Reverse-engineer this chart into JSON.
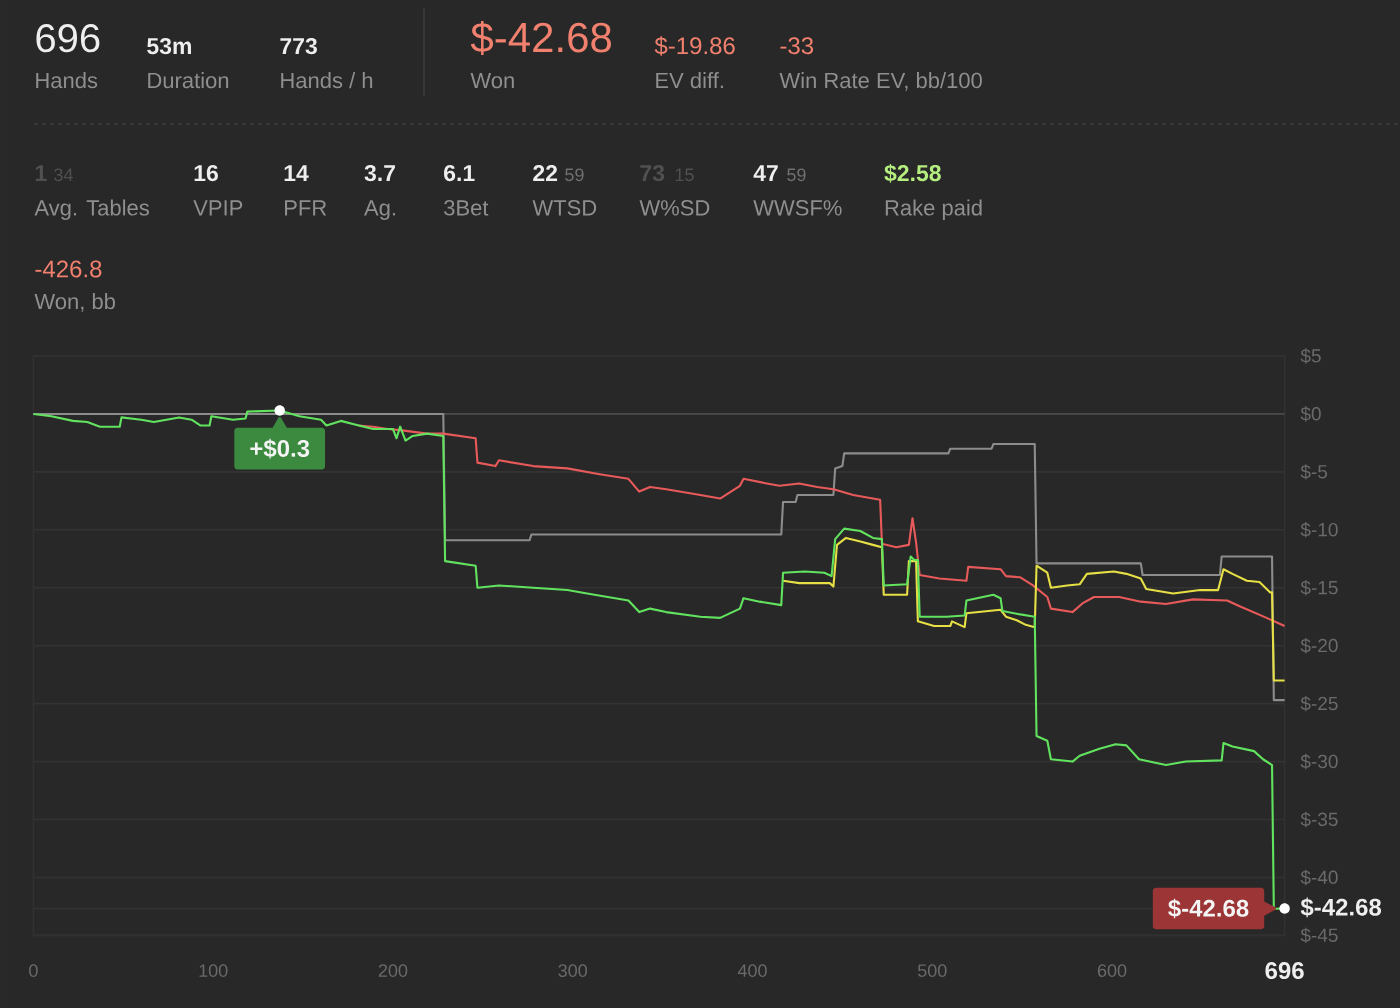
{
  "chart_data": [
    {
      "type": "other",
      "annotations": [
        "696",
        "Hands",
        "53m",
        "Duration",
        "773",
        "Hands / h",
        "$-42.68",
        "Won",
        "$-19.86",
        "EV diff.",
        "-33",
        "Win Rate EV, bb/100",
        "1",
        "34",
        "Avg. Tables",
        "16",
        "VPIP",
        "14",
        "PFR",
        "3.7",
        "Ag.",
        "6.1",
        "3Bet",
        "22",
        "59",
        "WTSD",
        "73",
        "15",
        "W%SD",
        "47",
        "59",
        "WWSF%",
        "$2.58",
        "Rake paid",
        "-426.8",
        "Won, bb"
      ]
    },
    {
      "type": "line",
      "xlim": [
        0,
        696
      ],
      "ylim": [
        -45,
        5
      ],
      "xticks": [
        0,
        100,
        200,
        300,
        400,
        500,
        600,
        696
      ],
      "yticks": [
        {
          "value": 5,
          "label": "$5"
        },
        {
          "value": 0,
          "label": "$0"
        },
        {
          "value": -5,
          "label": "$-5"
        },
        {
          "value": -10,
          "label": "$-10"
        },
        {
          "value": -15,
          "label": "$-15"
        },
        {
          "value": -20,
          "label": "$-20"
        },
        {
          "value": -25,
          "label": "$-25"
        },
        {
          "value": -30,
          "label": "$-30"
        },
        {
          "value": -35,
          "label": "$-35"
        },
        {
          "value": -40,
          "label": "$-40"
        },
        {
          "value": -45,
          "label": "$-45"
        },
        {
          "value": -42.68,
          "label": "$-42.68"
        }
      ],
      "grid": "y",
      "ref_lines": [
        {
          "axis": "y",
          "value": 0,
          "color": "#4a4a4a"
        }
      ],
      "annotations": [
        {
          "text": "+$0.3",
          "x": 137,
          "y": 0.3
        },
        {
          "text": "$-42.68",
          "x": 696,
          "y": -42.68
        }
      ],
      "series": [
        {
          "color": "#8c8c8c",
          "x": [
            0,
            228,
            229,
            276,
            277,
            416,
            417,
            424,
            425,
            445,
            446,
            450,
            451,
            509,
            510,
            533,
            534,
            557,
            558,
            616,
            617,
            660,
            661,
            689,
            690,
            696
          ],
          "values": [
            0,
            0,
            -10.9,
            -10.9,
            -10.4,
            -10.4,
            -7.6,
            -7.6,
            -7.0,
            -7.0,
            -4.7,
            -4.5,
            -3.4,
            -3.4,
            -3.0,
            -3.0,
            -2.6,
            -2.6,
            -12.9,
            -12.9,
            -13.9,
            -13.9,
            -12.3,
            -12.3,
            -24.7,
            -24.7
          ]
        },
        {
          "color": "#e85a5a",
          "x": [
            181,
            189,
            197,
            204,
            219,
            228,
            246,
            247,
            257,
            259,
            278,
            297,
            315,
            331,
            337,
            343,
            352,
            371,
            382,
            393,
            395,
            408,
            415,
            426,
            436,
            445,
            456,
            467,
            471,
            472,
            480,
            487,
            489,
            491,
            493,
            504,
            519,
            520,
            538,
            541,
            549,
            556,
            564,
            566,
            578,
            584,
            590,
            604,
            616,
            630,
            645,
            664,
            671,
            686,
            696
          ],
          "values": [
            -1.0,
            -1.1,
            -1.3,
            -1.4,
            -1.7,
            -1.7,
            -2.1,
            -4.2,
            -4.5,
            -4.0,
            -4.5,
            -4.7,
            -5.2,
            -5.6,
            -6.7,
            -6.3,
            -6.5,
            -7.0,
            -7.3,
            -6.2,
            -5.6,
            -6.0,
            -6.2,
            -6.0,
            -6.3,
            -6.5,
            -7.0,
            -7.3,
            -7.4,
            -11.2,
            -11.5,
            -11.3,
            -9.0,
            -11.1,
            -13.9,
            -14.2,
            -14.4,
            -13.2,
            -13.4,
            -14.0,
            -14.1,
            -14.8,
            -15.8,
            -16.8,
            -17.1,
            -16.3,
            -15.8,
            -15.8,
            -16.2,
            -16.4,
            -16.0,
            -16.1,
            -16.6,
            -17.6,
            -18.3
          ]
        },
        {
          "color": "#e6df45",
          "x": [
            417,
            426,
            443,
            445,
            447,
            452,
            460,
            467,
            472,
            473,
            486,
            487,
            491,
            492,
            501,
            510,
            511,
            518,
            519,
            538,
            541,
            547,
            552,
            557,
            558,
            564,
            566,
            575,
            582,
            586,
            601,
            608,
            616,
            619,
            634,
            649,
            659,
            662,
            667,
            675,
            682,
            688,
            689,
            690,
            696
          ],
          "values": [
            -14.4,
            -14.6,
            -14.6,
            -14.9,
            -11.3,
            -10.7,
            -11.0,
            -11.3,
            -11.5,
            -15.6,
            -15.6,
            -12.7,
            -12.7,
            -17.9,
            -18.3,
            -18.3,
            -17.9,
            -18.4,
            -17.2,
            -16.9,
            -17.5,
            -17.8,
            -18.2,
            -18.4,
            -13.1,
            -13.7,
            -15.0,
            -14.8,
            -14.7,
            -13.8,
            -13.6,
            -13.8,
            -14.2,
            -15.1,
            -15.5,
            -15.2,
            -15.2,
            -13.4,
            -13.8,
            -14.4,
            -14.5,
            -15.4,
            -15.4,
            -23.0,
            -23.0
          ]
        },
        {
          "color": "#62e35f",
          "x": [
            0,
            10,
            22,
            30,
            37,
            48,
            49,
            60,
            67,
            81,
            88,
            93,
            98,
            99,
            111,
            118,
            119,
            137,
            148,
            160,
            163,
            171,
            181,
            189,
            200,
            202,
            204,
            207,
            211,
            219,
            228,
            229,
            246,
            247,
            259,
            278,
            297,
            308,
            331,
            337,
            343,
            352,
            371,
            382,
            393,
            395,
            404,
            416,
            417,
            429,
            440,
            444,
            446,
            451,
            460,
            467,
            472,
            473,
            486,
            488,
            490,
            492,
            493,
            508,
            518,
            519,
            534,
            538,
            539,
            549,
            557,
            558,
            564,
            566,
            578,
            582,
            593,
            602,
            608,
            615,
            630,
            641,
            661,
            662,
            667,
            679,
            684,
            689,
            690,
            696
          ],
          "values": [
            0,
            -0.2,
            -0.6,
            -0.7,
            -1.1,
            -1.1,
            -0.3,
            -0.5,
            -0.7,
            -0.3,
            -0.5,
            -1.0,
            -1.0,
            -0.2,
            -0.5,
            -0.4,
            0.2,
            0.3,
            -0.2,
            -0.5,
            -1.0,
            -0.6,
            -1.0,
            -1.3,
            -1.3,
            -2.1,
            -1.1,
            -2.3,
            -1.9,
            -1.7,
            -1.9,
            -12.7,
            -13.1,
            -15.0,
            -14.8,
            -15.0,
            -15.2,
            -15.5,
            -16.1,
            -17.1,
            -16.8,
            -17.1,
            -17.5,
            -17.6,
            -16.8,
            -15.9,
            -16.2,
            -16.5,
            -13.7,
            -13.6,
            -13.7,
            -14.0,
            -10.8,
            -9.9,
            -10.1,
            -10.7,
            -10.8,
            -14.8,
            -14.7,
            -12.3,
            -12.6,
            -12.6,
            -17.5,
            -17.5,
            -17.4,
            -16.1,
            -15.6,
            -15.9,
            -17.0,
            -17.3,
            -17.5,
            -27.8,
            -28.2,
            -29.8,
            -30.0,
            -29.5,
            -28.9,
            -28.5,
            -28.6,
            -29.8,
            -30.3,
            -30.0,
            -29.9,
            -28.4,
            -28.7,
            -29.1,
            -29.8,
            -30.3,
            -42.7,
            -42.68
          ]
        }
      ]
    }
  ]
}
